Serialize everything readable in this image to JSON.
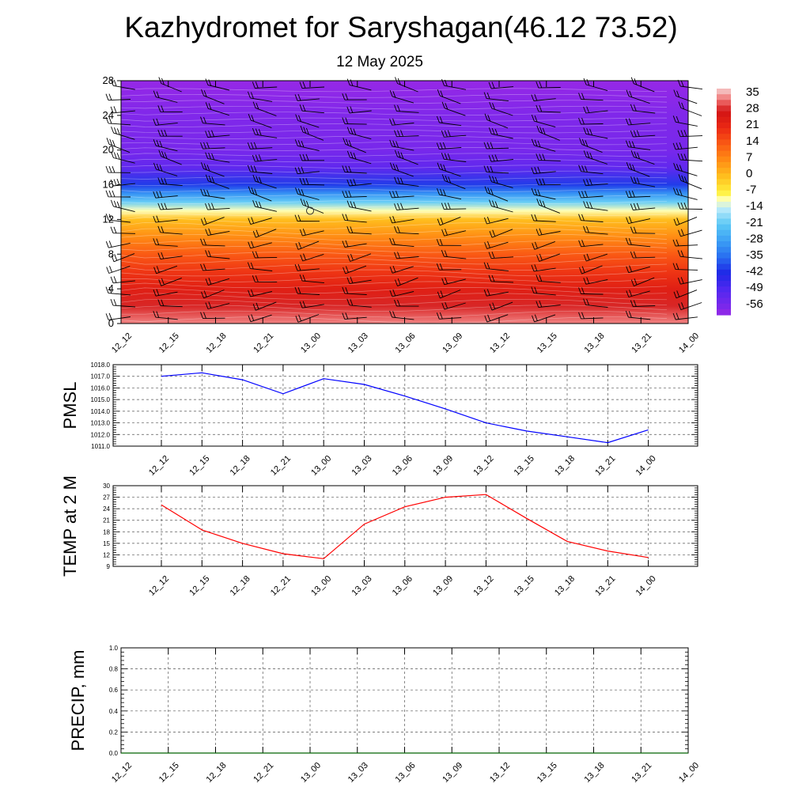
{
  "title": "Kazhydromet for Saryshagan(46.12 73.52)",
  "subtitle": "12 May 2025",
  "colorbar": {
    "labels": [
      "35",
      "28",
      "21",
      "14",
      "7",
      "0",
      "-7",
      "-14",
      "-21",
      "-28",
      "-35",
      "-42",
      "-49",
      "-56"
    ]
  },
  "chart_data": [
    {
      "type": "heatmap",
      "name": "temperature-profile",
      "x_labels": [
        "12_12",
        "12_15",
        "12_18",
        "12_21",
        "13_00",
        "13_03",
        "13_06",
        "13_09",
        "13_12",
        "13_15",
        "13_18",
        "13_21",
        "14_00"
      ],
      "y_ticks": [
        0,
        4,
        8,
        12,
        16,
        20,
        24,
        28
      ],
      "ylim": [
        0,
        28
      ],
      "color_range": [
        -60,
        38
      ],
      "profile": [
        {
          "y": 0,
          "v": 34
        },
        {
          "y": 2,
          "v": 29
        },
        {
          "y": 4,
          "v": 24
        },
        {
          "y": 6,
          "v": 19
        },
        {
          "y": 8,
          "v": 14
        },
        {
          "y": 10,
          "v": 7
        },
        {
          "y": 12,
          "v": 0
        },
        {
          "y": 13,
          "v": -10
        },
        {
          "y": 14,
          "v": -20
        },
        {
          "y": 15,
          "v": -30
        },
        {
          "y": 16,
          "v": -40
        },
        {
          "y": 18,
          "v": -52
        },
        {
          "y": 20,
          "v": -56
        },
        {
          "y": 24,
          "v": -57
        },
        {
          "y": 28,
          "v": -60
        }
      ],
      "wind_barbs": true,
      "marker": {
        "x_label": "13_00",
        "y": 13
      }
    },
    {
      "type": "line",
      "name": "PMSL",
      "ylabel": "PMSL",
      "x_labels": [
        "12_12",
        "12_15",
        "12_18",
        "12_21",
        "13_00",
        "13_03",
        "13_06",
        "13_09",
        "13_12",
        "13_15",
        "13_18",
        "13_21",
        "14_00"
      ],
      "values": [
        1017.0,
        1017.3,
        1016.7,
        1015.5,
        1016.8,
        1016.3,
        1015.3,
        1014.2,
        1013.0,
        1012.3,
        1011.8,
        1011.3,
        1012.4
      ],
      "ylim": [
        1011.0,
        1018.0
      ],
      "y_ticks": [
        "1011.0",
        "1012.0",
        "1013.0",
        "1014.0",
        "1015.0",
        "1016.0",
        "1017.0",
        "1018.0"
      ],
      "color": "#0000ff",
      "grid": true
    },
    {
      "type": "line",
      "name": "TEMP at 2 M",
      "ylabel": "TEMP at 2 M",
      "x_labels": [
        "12_12",
        "12_15",
        "12_18",
        "12_21",
        "13_00",
        "13_03",
        "13_06",
        "13_09",
        "13_12",
        "13_15",
        "13_18",
        "13_21",
        "14_00"
      ],
      "values": [
        25,
        18.5,
        15,
        12.3,
        11,
        20,
        24.5,
        27,
        27.7,
        21.5,
        15.5,
        13,
        11.3
      ],
      "ylim": [
        9,
        30
      ],
      "y_ticks": [
        "9",
        "12",
        "15",
        "18",
        "21",
        "24",
        "27",
        "30"
      ],
      "color": "#ff0000",
      "grid": true
    },
    {
      "type": "line",
      "name": "PRECIP, mm",
      "ylabel": "PRECIP, mm",
      "x_labels": [
        "12_12",
        "12_15",
        "12_18",
        "12_21",
        "13_00",
        "13_03",
        "13_06",
        "13_09",
        "13_12",
        "13_15",
        "13_18",
        "13_21",
        "14_00"
      ],
      "values": [
        0,
        0,
        0,
        0,
        0,
        0,
        0,
        0,
        0,
        0,
        0,
        0,
        0
      ],
      "ylim": [
        0,
        1
      ],
      "y_ticks": [
        "0.0",
        "0.2",
        "0.4",
        "0.6",
        "0.8",
        "1.0"
      ],
      "color": "#006400",
      "grid": true
    }
  ]
}
